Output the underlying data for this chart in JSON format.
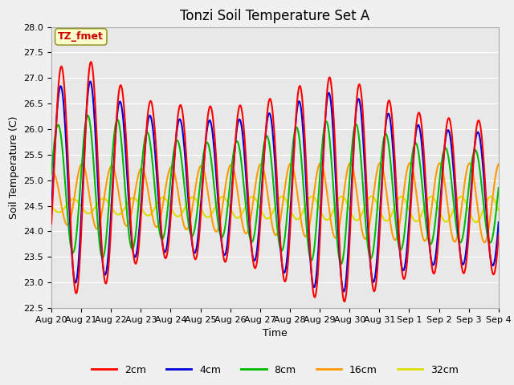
{
  "title": "Tonzi Soil Temperature Set A",
  "ylabel": "Soil Temperature (C)",
  "xlabel": "Time",
  "annotation": "TZ_fmet",
  "ylim": [
    22.5,
    28.0
  ],
  "yticks": [
    22.5,
    23.0,
    23.5,
    24.0,
    24.5,
    25.0,
    25.5,
    26.0,
    26.5,
    27.0,
    27.5,
    28.0
  ],
  "xtick_labels": [
    "Aug 20",
    "Aug 21",
    "Aug 22",
    "Aug 23",
    "Aug 24",
    "Aug 25",
    "Aug 26",
    "Aug 27",
    "Aug 28",
    "Aug 29",
    "Aug 30",
    "Aug 31",
    "Sep 1",
    "Sep 2",
    "Sep 3",
    "Sep 4"
  ],
  "colors": {
    "2cm": "#ff0000",
    "4cm": "#0000dd",
    "8cm": "#00bb00",
    "16cm": "#ff9900",
    "32cm": "#dddd00"
  },
  "lw": 1.5,
  "fig_facecolor": "#f0f0f0",
  "ax_facecolor": "#e8e8e8",
  "title_fontsize": 12,
  "label_fontsize": 9,
  "tick_fontsize": 8,
  "legend_fontsize": 9,
  "annotation_fontsize": 9,
  "figsize": [
    6.4,
    4.8
  ],
  "dpi": 100
}
